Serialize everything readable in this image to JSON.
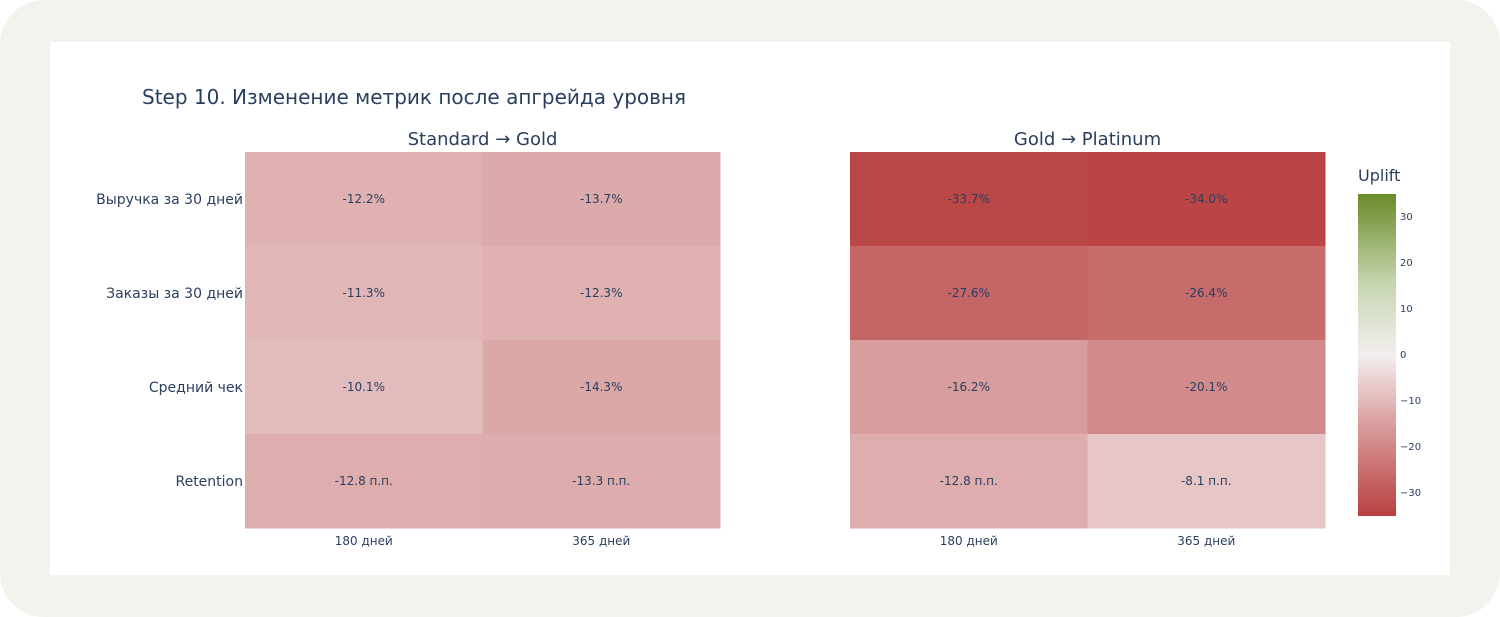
{
  "chart_data": {
    "type": "heatmap",
    "title": "Step 10. Изменение метрик после апгрейда уровня",
    "rows": [
      "Выручка за 30 дней",
      "Заказы за 30 дней",
      "Средний чек",
      "Retention"
    ],
    "panels": [
      {
        "name": "Standard → Gold",
        "columns": [
          "180 дней",
          "365 дней"
        ],
        "values": [
          [
            -12.2,
            -13.7
          ],
          [
            -11.3,
            -12.3
          ],
          [
            -10.1,
            -14.3
          ],
          [
            -12.8,
            -13.3
          ]
        ],
        "labels": [
          [
            "-12.2%",
            "-13.7%"
          ],
          [
            "-11.3%",
            "-12.3%"
          ],
          [
            "-10.1%",
            "-14.3%"
          ],
          [
            "-12.8 п.п.",
            "-13.3 п.п."
          ]
        ]
      },
      {
        "name": "Gold → Platinum",
        "columns": [
          "180 дней",
          "365 дней"
        ],
        "values": [
          [
            -33.7,
            -34.0
          ],
          [
            -27.6,
            -26.4
          ],
          [
            -16.2,
            -20.1
          ],
          [
            -12.8,
            -8.1
          ]
        ],
        "labels": [
          [
            "-33.7%",
            "-34.0%"
          ],
          [
            "-27.6%",
            "-26.4%"
          ],
          [
            "-16.2%",
            "-20.1%"
          ],
          [
            "-12.8 п.п.",
            "-8.1 п.п."
          ]
        ]
      }
    ],
    "colorbar": {
      "title": "Uplift",
      "range": [
        -35,
        35
      ],
      "ticks": [
        "30",
        "20",
        "10",
        "0",
        "−10",
        "−20",
        "−30"
      ],
      "tick_values": [
        30,
        20,
        10,
        0,
        -10,
        -20,
        -30
      ],
      "colors": {
        "negative": "#b94040",
        "neutral": "#f3eeee",
        "positive": "#6a8a28"
      }
    }
  }
}
